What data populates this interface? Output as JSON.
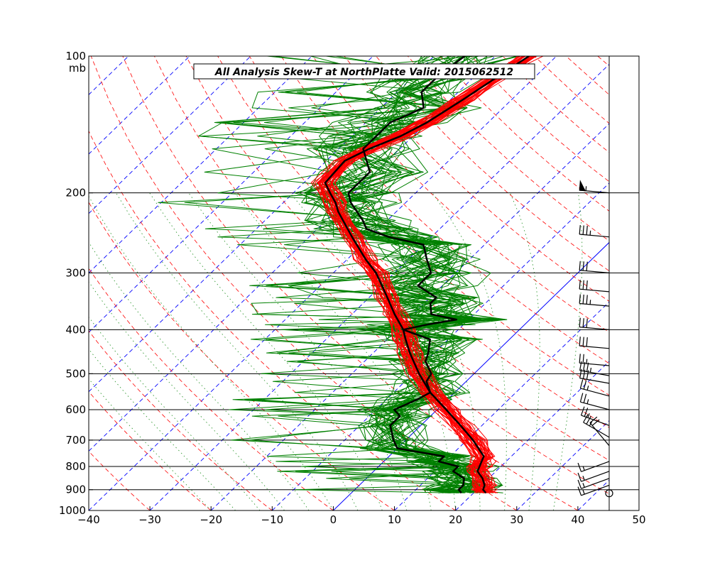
{
  "chart_data": {
    "type": "line",
    "subtype": "skew-t log-p",
    "title": "All Analysis  Skew-T at NorthPlatte   Valid: 2015062512",
    "ylabel_unit": "mb",
    "xlim": [
      -40,
      50
    ],
    "ylim": [
      1000,
      100
    ],
    "x_ticks": [
      -40,
      -30,
      -20,
      -10,
      0,
      10,
      20,
      30,
      40,
      50
    ],
    "x_tick_labels": [
      "−40",
      "−30",
      "−20",
      "−10",
      "0",
      "10",
      "20",
      "30",
      "40",
      "50"
    ],
    "y_ticks": [
      1000,
      900,
      800,
      700,
      600,
      500,
      400,
      300,
      200,
      100
    ],
    "isobar_lines": [
      900,
      800,
      700,
      600,
      500,
      400,
      300,
      200
    ],
    "isotherm_solid": 0,
    "colors": {
      "temperature": "#ff0000",
      "dewpoint": "#008000",
      "mean": "#000000",
      "isotherm": "#0000ff",
      "dry_adiabat": "#ff0000",
      "moist_adiabat": "#008000",
      "wind": "#000000"
    },
    "series": [
      {
        "name": "Temperature (mean)",
        "pressure": [
          915,
          900,
          880,
          850,
          820,
          800,
          780,
          760,
          700,
          650,
          600,
          550,
          500,
          450,
          420,
          400,
          370,
          340,
          300,
          280,
          250,
          220,
          210,
          200,
          190,
          170,
          160,
          150,
          140,
          125,
          110,
          100
        ],
        "values": [
          22,
          21,
          20.5,
          19,
          17,
          16.5,
          16,
          15.5,
          11,
          6.5,
          1.5,
          -4,
          -9,
          -14,
          -17,
          -19,
          -23,
          -27,
          -33,
          -37,
          -43,
          -49.5,
          -51.5,
          -54,
          -56.5,
          -57,
          -55,
          -52,
          -50,
          -48,
          -46,
          -44.5
        ]
      },
      {
        "name": "Dewpoint (mean)",
        "pressure": [
          915,
          900,
          880,
          850,
          820,
          800,
          780,
          760,
          730,
          700,
          650,
          620,
          600,
          570,
          550,
          520,
          500,
          470,
          450,
          420,
          400,
          390,
          380,
          370,
          350,
          340,
          320,
          300,
          280,
          260,
          250,
          240,
          230,
          210,
          200,
          180,
          160,
          150,
          140,
          130,
          120,
          110,
          100
        ],
        "values": [
          18,
          17,
          17,
          16,
          13,
          13,
          9,
          9,
          0,
          -2,
          -5,
          -5,
          -7,
          -5,
          -4,
          -6.5,
          -7,
          -10,
          -11,
          -13,
          -19,
          -16,
          -12,
          -17,
          -19,
          -19,
          -24,
          -24,
          -27,
          -30,
          -37,
          -42,
          -44,
          -49,
          -51,
          -51,
          -56,
          -56,
          -56,
          -53,
          -56,
          -56,
          -55
        ]
      }
    ],
    "ensemble": {
      "temperature_members": 40,
      "dewpoint_members": 40
    },
    "wind_barbs": [
      {
        "pressure": 900,
        "calm": true
      },
      {
        "pressure": 880,
        "direction": 250,
        "speed": 15
      },
      {
        "pressure": 850,
        "direction": 250,
        "speed": 15
      },
      {
        "pressure": 820,
        "direction": 250,
        "speed": 15
      },
      {
        "pressure": 780,
        "direction": 250,
        "speed": 15
      },
      {
        "pressure": 720,
        "direction": 320,
        "speed": 20
      },
      {
        "pressure": 690,
        "direction": 300,
        "speed": 25
      },
      {
        "pressure": 650,
        "direction": 290,
        "speed": 25
      },
      {
        "pressure": 600,
        "direction": 285,
        "speed": 25
      },
      {
        "pressure": 560,
        "direction": 285,
        "speed": 25
      },
      {
        "pressure": 525,
        "direction": 280,
        "speed": 30
      },
      {
        "pressure": 505,
        "direction": 280,
        "speed": 35
      },
      {
        "pressure": 480,
        "direction": 275,
        "speed": 25
      },
      {
        "pressure": 440,
        "direction": 275,
        "speed": 30
      },
      {
        "pressure": 400,
        "direction": 275,
        "speed": 30
      },
      {
        "pressure": 355,
        "direction": 275,
        "speed": 35
      },
      {
        "pressure": 330,
        "direction": 275,
        "speed": 30
      },
      {
        "pressure": 300,
        "direction": 275,
        "speed": 30
      },
      {
        "pressure": 250,
        "direction": 275,
        "speed": 35
      },
      {
        "pressure": 200,
        "direction": 275,
        "speed": 55
      }
    ]
  }
}
